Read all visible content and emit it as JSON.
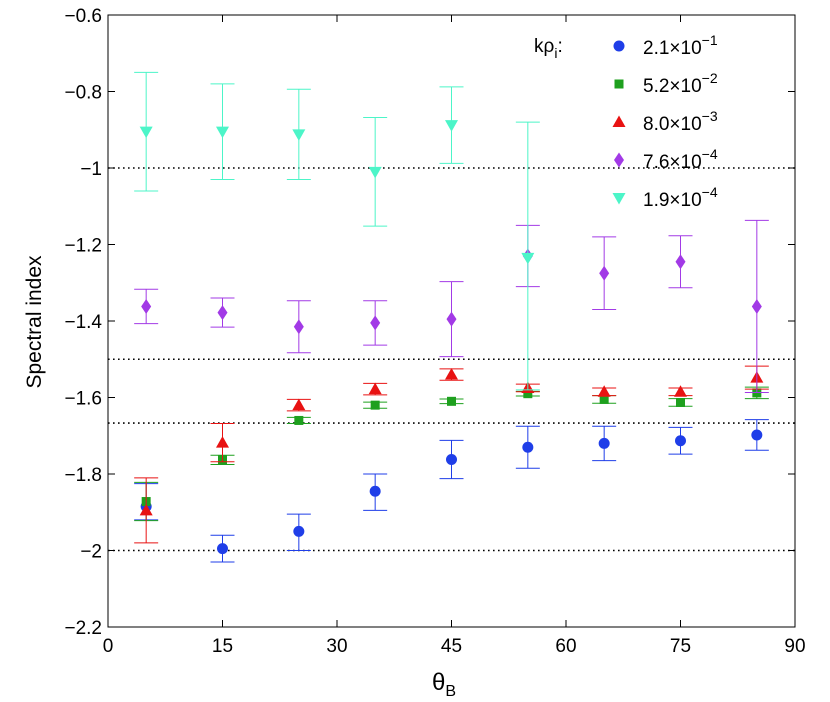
{
  "chart_data": {
    "type": "scatter",
    "title": "",
    "xlabel": "θ",
    "xlabel_sub": "B",
    "ylabel": "Spectral index",
    "xlim": [
      0,
      90
    ],
    "ylim": [
      -2.2,
      -0.6
    ],
    "xticks": [
      0,
      15,
      30,
      45,
      60,
      75,
      90
    ],
    "yticks": [
      -2.2,
      -2,
      -1.8,
      -1.6,
      -1.4,
      -1.2,
      -1,
      -0.8,
      -0.6
    ],
    "xtick_labels": [
      "0",
      "15",
      "30",
      "45",
      "60",
      "75",
      "90"
    ],
    "ytick_labels": [
      "−2.2",
      "−2",
      "−1.8",
      "−1.6",
      "−1.4",
      "−1.2",
      "−1",
      "−0.8",
      "−0.6"
    ],
    "reference_lines": [
      -1.0,
      -1.5,
      -1.6667,
      -2.0
    ],
    "legend_title": "kρ",
    "legend_title_sub": "i",
    "legend_title_suffix": ":",
    "legend_position": "top-right",
    "series": [
      {
        "name": "2.1×10^-1",
        "label_base": "2.1×10",
        "label_exp": "−1",
        "marker": "circle",
        "color": "#1f3ee8",
        "x": [
          5,
          15,
          25,
          35,
          45,
          55,
          65,
          75,
          85
        ],
        "y": [
          -1.885,
          -1.995,
          -1.95,
          -1.845,
          -1.762,
          -1.73,
          -1.72,
          -1.713,
          -1.698
        ],
        "err_low": [
          0.035,
          0.035,
          0.05,
          0.05,
          0.05,
          0.055,
          0.045,
          0.035,
          0.04
        ],
        "err_high": [
          0.06,
          0.035,
          0.045,
          0.045,
          0.05,
          0.055,
          0.045,
          0.035,
          0.04
        ]
      },
      {
        "name": "5.2×10^-2",
        "label_base": "5.2×10",
        "label_exp": "−2",
        "marker": "square",
        "color": "#1ea01e",
        "x": [
          5,
          15,
          25,
          35,
          45,
          55,
          65,
          75,
          85
        ],
        "y": [
          -1.872,
          -1.763,
          -1.66,
          -1.62,
          -1.61,
          -1.59,
          -1.605,
          -1.613,
          -1.588
        ],
        "err_low": [
          0.05,
          0.012,
          0.008,
          0.008,
          0.006,
          0.006,
          0.01,
          0.01,
          0.015
        ],
        "err_high": [
          0.05,
          0.012,
          0.008,
          0.008,
          0.006,
          0.006,
          0.01,
          0.01,
          0.015
        ]
      },
      {
        "name": "8.0×10^-3",
        "label_base": "8.0×10",
        "label_exp": "−3",
        "marker": "triangle-up",
        "color": "#e81212",
        "x": [
          5,
          15,
          25,
          35,
          45,
          55,
          65,
          75,
          85
        ],
        "y": [
          -1.895,
          -1.718,
          -1.62,
          -1.578,
          -1.54,
          -1.575,
          -1.585,
          -1.585,
          -1.548
        ],
        "err_low": [
          0.085,
          0.05,
          0.015,
          0.015,
          0.015,
          0.01,
          0.01,
          0.01,
          0.03
        ],
        "err_high": [
          0.085,
          0.05,
          0.015,
          0.015,
          0.015,
          0.01,
          0.01,
          0.01,
          0.03
        ]
      },
      {
        "name": "7.6×10^-4",
        "label_base": "7.6×10",
        "label_exp": "−4",
        "marker": "diamond",
        "color": "#a23ae6",
        "x": [
          5,
          15,
          25,
          35,
          45,
          55,
          65,
          75,
          85
        ],
        "y": [
          -1.362,
          -1.378,
          -1.415,
          -1.405,
          -1.395,
          -1.23,
          -1.275,
          -1.245,
          -1.362
        ],
        "err_low": [
          0.045,
          0.038,
          0.068,
          0.058,
          0.098,
          0.08,
          0.095,
          0.068,
          0.225
        ],
        "err_high": [
          0.045,
          0.038,
          0.068,
          0.058,
          0.098,
          0.08,
          0.095,
          0.068,
          0.225
        ]
      },
      {
        "name": "1.9×10^-4",
        "label_base": "1.9×10",
        "label_exp": "−4",
        "marker": "triangle-down",
        "color": "#4cf5c8",
        "x": [
          5,
          15,
          25,
          35,
          45,
          55
        ],
        "y": [
          -0.905,
          -0.905,
          -0.912,
          -1.01,
          -0.888,
          -1.235
        ],
        "err_low": [
          0.155,
          0.125,
          0.118,
          0.142,
          0.1,
          0.345
        ],
        "err_high": [
          0.155,
          0.125,
          0.118,
          0.142,
          0.1,
          0.355
        ]
      }
    ]
  }
}
